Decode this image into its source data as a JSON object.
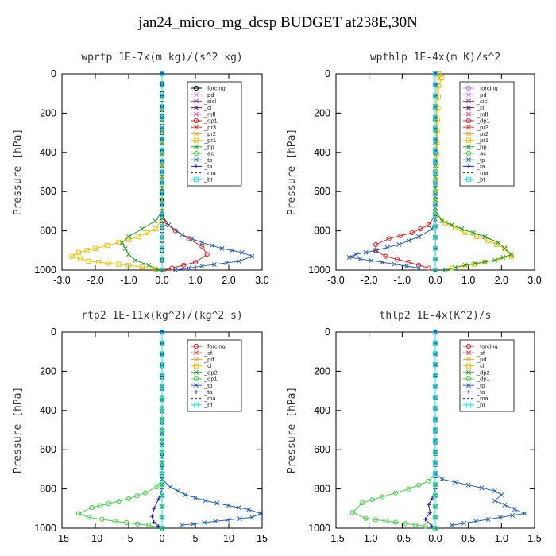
{
  "page": {
    "title": "jan24_micro_mg_dcsp  BUDGET at238E,30N"
  },
  "chart_data": [
    {
      "type": "line",
      "title": "wprtp  1E-7x(m kg)/(s^2 kg)",
      "ylabel": "Pressure [hPa]",
      "xlim": [
        -3.0,
        3.0
      ],
      "ylim": [
        1000,
        0
      ],
      "xticks": [
        "-3.0",
        "-2.0",
        "-1.0",
        "0.0",
        "1.0",
        "2.0",
        "3.0"
      ],
      "xtick_values": [
        -3,
        -2,
        -1,
        0,
        1,
        2,
        3
      ],
      "yticks": [
        "0",
        "200",
        "400",
        "600",
        "800",
        "1000"
      ],
      "ytick_values": [
        0,
        200,
        400,
        600,
        800,
        1000
      ],
      "series": [
        {
          "name": "_forcing",
          "color": "#000000",
          "marker": "o",
          "x": [
            0,
            0,
            0,
            0,
            0,
            0
          ],
          "y": [
            0,
            200,
            400,
            600,
            800,
            1000
          ]
        },
        {
          "name": "_pd",
          "color": "#c080e0",
          "marker": "x",
          "x": [
            0,
            0
          ],
          "y": [
            0,
            1000
          ]
        },
        {
          "name": "_sicl",
          "color": "#8040c0",
          "marker": "x",
          "x": [
            0,
            0
          ],
          "y": [
            0,
            1000
          ]
        },
        {
          "name": "_cl",
          "color": "#6a0a6a",
          "marker": "x",
          "x": [
            0,
            0
          ],
          "y": [
            0,
            1000
          ]
        },
        {
          "name": "_mfl",
          "color": "#c04080",
          "marker": "x",
          "x": [
            0,
            0
          ],
          "y": [
            0,
            1000
          ]
        },
        {
          "name": "_dp1",
          "color": "#e02020",
          "marker": "o",
          "x": [
            0,
            0,
            0.1,
            0.4,
            0.8,
            1.2,
            1.35,
            1.0,
            0.3,
            0.05
          ],
          "y": [
            0,
            700,
            760,
            800,
            840,
            880,
            920,
            960,
            990,
            1000
          ]
        },
        {
          "name": "_pr3",
          "color": "#e03030",
          "marker": "x",
          "x": [
            0,
            0
          ],
          "y": [
            0,
            1000
          ]
        },
        {
          "name": "_pr2",
          "color": "#f0a030",
          "marker": "x",
          "x": [
            0,
            0
          ],
          "y": [
            0,
            1000
          ]
        },
        {
          "name": "_pr1",
          "color": "#f0c000",
          "marker": "s",
          "x": [
            0,
            0,
            -0.2,
            -0.7,
            -1.3,
            -2.0,
            -2.5,
            -2.7,
            -2.2,
            -1.0,
            -0.2
          ],
          "y": [
            0,
            740,
            790,
            830,
            860,
            890,
            910,
            930,
            955,
            975,
            995
          ]
        },
        {
          "name": "_bp",
          "color": "#20a020",
          "marker": "x",
          "x": [
            0,
            0,
            -0.2,
            -0.6,
            -1.0,
            -1.2,
            -1.1,
            -1.0,
            -0.8,
            -0.4,
            -0.1
          ],
          "y": [
            0,
            700,
            750,
            790,
            830,
            860,
            890,
            920,
            950,
            975,
            1000
          ]
        },
        {
          "name": "_ac",
          "color": "#40d040",
          "marker": "o",
          "x": [
            0,
            0
          ],
          "y": [
            0,
            1000
          ]
        },
        {
          "name": "_tp",
          "color": "#2060c0",
          "marker": "x",
          "x": [
            0,
            0,
            0.2,
            0.6,
            1.2,
            1.8,
            2.4,
            2.7,
            2.3,
            1.2,
            0.4
          ],
          "y": [
            0,
            720,
            770,
            820,
            860,
            890,
            910,
            930,
            955,
            980,
            1000
          ]
        },
        {
          "name": "_ta",
          "color": "#2020d0",
          "marker": "+",
          "x": [
            0,
            0
          ],
          "y": [
            0,
            1000
          ]
        },
        {
          "name": "_ma",
          "color": "#202040",
          "marker": "-",
          "x": [
            0,
            0
          ],
          "y": [
            0,
            1000
          ]
        },
        {
          "name": "_bt",
          "color": "#20e0e0",
          "marker": "s",
          "x": [
            0,
            0
          ],
          "y": [
            0,
            1000
          ]
        }
      ]
    },
    {
      "type": "line",
      "title": "wpthlp  1E-4x(m K)/s^2",
      "ylabel": "Pressure [hPa]",
      "xlim": [
        -3.0,
        3.0
      ],
      "ylim": [
        1000,
        0
      ],
      "xticks": [
        "-3.0",
        "-2.0",
        "-1.0",
        "0.0",
        "1.0",
        "2.0",
        "3.0"
      ],
      "xtick_values": [
        -3,
        -2,
        -1,
        0,
        1,
        2,
        3
      ],
      "yticks": [
        "0",
        "200",
        "400",
        "600",
        "800",
        "1000"
      ],
      "ytick_values": [
        0,
        200,
        400,
        600,
        800,
        1000
      ],
      "series": [
        {
          "name": "_forcing",
          "color": "#c080e0",
          "marker": "o",
          "x": [
            0,
            0
          ],
          "y": [
            0,
            1000
          ]
        },
        {
          "name": "_pd",
          "color": "#c080e0",
          "marker": "x",
          "x": [
            0,
            0
          ],
          "y": [
            0,
            1000
          ]
        },
        {
          "name": "_sicl",
          "color": "#8040c0",
          "marker": "x",
          "x": [
            0,
            0
          ],
          "y": [
            0,
            1000
          ]
        },
        {
          "name": "_cl",
          "color": "#6a0a6a",
          "marker": "x",
          "x": [
            0,
            0
          ],
          "y": [
            0,
            1000
          ]
        },
        {
          "name": "_mfl",
          "color": "#c04080",
          "marker": "x",
          "x": [
            0,
            0
          ],
          "y": [
            0,
            1000
          ]
        },
        {
          "name": "_dp1",
          "color": "#e02020",
          "marker": "o",
          "x": [
            0,
            0,
            -0.2,
            -0.7,
            -1.4,
            -1.8,
            -1.8,
            -1.5,
            -0.8,
            -0.2
          ],
          "y": [
            0,
            720,
            770,
            810,
            840,
            870,
            900,
            930,
            960,
            990
          ]
        },
        {
          "name": "_pr3",
          "color": "#e03030",
          "marker": "x",
          "x": [
            0,
            0
          ],
          "y": [
            0,
            1000
          ]
        },
        {
          "name": "_pr2",
          "color": "#f0a030",
          "marker": "x",
          "x": [
            0.05,
            0.1,
            0.05,
            0
          ],
          "y": [
            0,
            20,
            60,
            1000
          ]
        },
        {
          "name": "_pr1",
          "color": "#f0c000",
          "marker": "s",
          "x": [
            0.1,
            0.2,
            0.1,
            0,
            0.3,
            0.9,
            1.6,
            2.1,
            2.3,
            1.5,
            0.5
          ],
          "y": [
            0,
            20,
            60,
            700,
            760,
            810,
            850,
            890,
            930,
            960,
            990
          ]
        },
        {
          "name": "_bp",
          "color": "#20a020",
          "marker": "x",
          "x": [
            0,
            0,
            0.2,
            0.8,
            1.5,
            1.9,
            2.1,
            2.3,
            1.8,
            0.9,
            0.3
          ],
          "y": [
            0,
            700,
            750,
            790,
            830,
            860,
            890,
            920,
            950,
            975,
            1000
          ]
        },
        {
          "name": "_ac",
          "color": "#40d040",
          "marker": "o",
          "x": [
            0,
            0
          ],
          "y": [
            0,
            1000
          ]
        },
        {
          "name": "_tp",
          "color": "#2060c0",
          "marker": "x",
          "x": [
            0,
            0,
            -0.1,
            -0.5,
            -1.1,
            -1.8,
            -2.4,
            -2.6,
            -1.6,
            -0.5
          ],
          "y": [
            0,
            740,
            790,
            830,
            870,
            900,
            920,
            935,
            960,
            990
          ]
        },
        {
          "name": "_ta",
          "color": "#2020d0",
          "marker": "+",
          "x": [
            0,
            0
          ],
          "y": [
            0,
            1000
          ]
        },
        {
          "name": "_ma",
          "color": "#202040",
          "marker": "-",
          "x": [
            0,
            0
          ],
          "y": [
            0,
            1000
          ]
        },
        {
          "name": "_bt",
          "color": "#20e0e0",
          "marker": "s",
          "x": [
            0,
            0
          ],
          "y": [
            0,
            1000
          ]
        }
      ]
    },
    {
      "type": "line",
      "title": "rtp2  1E-11x(kg^2)/(kg^2 s)",
      "ylabel": "Pressure [hPa]",
      "xlim": [
        -15,
        15
      ],
      "ylim": [
        1000,
        0
      ],
      "xticks": [
        "-15",
        "-10",
        "-5",
        "0",
        "5",
        "10",
        "15"
      ],
      "xtick_values": [
        -15,
        -10,
        -5,
        0,
        5,
        10,
        15
      ],
      "yticks": [
        "0",
        "200",
        "400",
        "600",
        "800",
        "1000"
      ],
      "ytick_values": [
        0,
        200,
        400,
        600,
        800,
        1000
      ],
      "series": [
        {
          "name": "_forcing",
          "color": "#e02020",
          "marker": "o",
          "x": [
            0,
            0
          ],
          "y": [
            0,
            1000
          ]
        },
        {
          "name": "_sf",
          "color": "#d03030",
          "marker": "x",
          "x": [
            0,
            0
          ],
          "y": [
            0,
            1000
          ]
        },
        {
          "name": "_pd",
          "color": "#f0a030",
          "marker": "x",
          "x": [
            0,
            0
          ],
          "y": [
            0,
            1000
          ]
        },
        {
          "name": "_cl",
          "color": "#f0c000",
          "marker": "s",
          "x": [
            0,
            0
          ],
          "y": [
            0,
            1000
          ]
        },
        {
          "name": "_dp2",
          "color": "#20a020",
          "marker": "x",
          "x": [
            0,
            0
          ],
          "y": [
            0,
            1000
          ]
        },
        {
          "name": "_dp1",
          "color": "#40d040",
          "marker": "o",
          "x": [
            0,
            0,
            -0.8,
            -2.5,
            -5,
            -8,
            -10.5,
            -12.5,
            -11,
            -7,
            -2,
            0
          ],
          "y": [
            0,
            750,
            790,
            820,
            850,
            875,
            895,
            925,
            945,
            965,
            985,
            1000
          ]
        },
        {
          "name": "_tp",
          "color": "#2060c0",
          "marker": "x",
          "x": [
            0,
            0,
            1.2,
            3.5,
            6.5,
            10,
            13,
            14.8,
            13.5,
            8,
            3
          ],
          "y": [
            0,
            750,
            790,
            830,
            860,
            885,
            905,
            925,
            945,
            965,
            985
          ]
        },
        {
          "name": "_ta",
          "color": "#2020d0",
          "marker": "+",
          "x": [
            0,
            0,
            -0.5,
            -1.2,
            -1.5,
            -1.2,
            -0.5
          ],
          "y": [
            0,
            800,
            850,
            900,
            940,
            970,
            990
          ]
        },
        {
          "name": "_ma",
          "color": "#202040",
          "marker": "-",
          "x": [
            0,
            0
          ],
          "y": [
            0,
            1000
          ]
        },
        {
          "name": "_bt",
          "color": "#20e0e0",
          "marker": "s",
          "x": [
            0,
            0
          ],
          "y": [
            0,
            1000
          ]
        }
      ]
    },
    {
      "type": "line",
      "title": "thlp2  1E-4x(K^2)/s",
      "ylabel": "Pressure [hPa]",
      "xlim": [
        -1.5,
        1.5
      ],
      "ylim": [
        1000,
        0
      ],
      "xticks": [
        "-1.5",
        "-1.0",
        "-0.5",
        "0.0",
        "0.5",
        "1.0",
        "1.5"
      ],
      "xtick_values": [
        -1.5,
        -1.0,
        -0.5,
        0.0,
        0.5,
        1.0,
        1.5
      ],
      "yticks": [
        "0",
        "200",
        "400",
        "600",
        "800",
        "1000"
      ],
      "ytick_values": [
        0,
        200,
        400,
        600,
        800,
        1000
      ],
      "series": [
        {
          "name": "_forcing",
          "color": "#e02020",
          "marker": "o",
          "x": [
            0,
            0
          ],
          "y": [
            0,
            1000
          ]
        },
        {
          "name": "_sf",
          "color": "#d03030",
          "marker": "x",
          "x": [
            0,
            0
          ],
          "y": [
            0,
            1000
          ]
        },
        {
          "name": "_pd",
          "color": "#f0a030",
          "marker": "x",
          "x": [
            0,
            0
          ],
          "y": [
            0,
            1000
          ]
        },
        {
          "name": "_cl",
          "color": "#f0c000",
          "marker": "s",
          "x": [
            0,
            0
          ],
          "y": [
            0,
            1000
          ]
        },
        {
          "name": "_dp2",
          "color": "#20a020",
          "marker": "x",
          "x": [
            0,
            0
          ],
          "y": [
            0,
            1000
          ]
        },
        {
          "name": "_dp1",
          "color": "#40d040",
          "marker": "o",
          "x": [
            0,
            0,
            -0.1,
            -0.4,
            -0.8,
            -1.1,
            -1.25,
            -1.05,
            -0.6,
            -0.15
          ],
          "y": [
            0,
            720,
            760,
            800,
            840,
            870,
            920,
            950,
            970,
            990
          ]
        },
        {
          "name": "_tp",
          "color": "#2060c0",
          "marker": "x",
          "x": [
            0,
            0,
            0.1,
            0.5,
            0.9,
            1.0,
            0.9,
            1.35,
            0.8,
            0.25
          ],
          "y": [
            0,
            720,
            750,
            780,
            810,
            830,
            860,
            925,
            955,
            985
          ]
        },
        {
          "name": "_ta",
          "color": "#2020d0",
          "marker": "+",
          "x": [
            0,
            0,
            -0.05,
            -0.1,
            -0.08,
            -0.15,
            -0.05
          ],
          "y": [
            0,
            800,
            850,
            880,
            920,
            955,
            990
          ]
        },
        {
          "name": "_ma",
          "color": "#202040",
          "marker": "-",
          "x": [
            0,
            0
          ],
          "y": [
            0,
            1000
          ]
        },
        {
          "name": "_bt",
          "color": "#20e0e0",
          "marker": "s",
          "x": [
            0,
            0
          ],
          "y": [
            0,
            1000
          ]
        }
      ]
    }
  ]
}
